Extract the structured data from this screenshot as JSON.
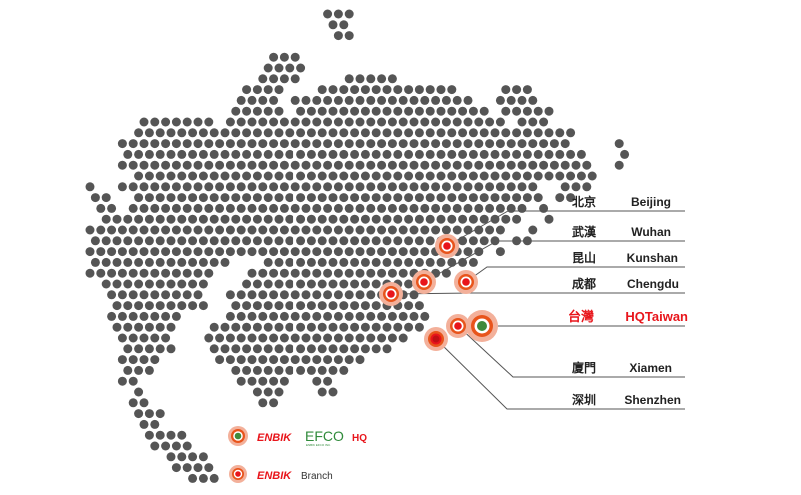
{
  "colors": {
    "dot": "#555555",
    "accent": "#e8151b",
    "marker_halo": "#f3b09a",
    "marker_ring": "#e8541b",
    "hq_center": "#3f8a3c",
    "efco_green": "#2f8a3a"
  },
  "locations": [
    {
      "id": "beijing",
      "zh": "北京",
      "en": "Beijing",
      "highlight": false
    },
    {
      "id": "wuhan",
      "zh": "武漢",
      "en": "Wuhan",
      "highlight": false
    },
    {
      "id": "kunshan",
      "zh": "昆山",
      "en": "Kunshan",
      "highlight": false
    },
    {
      "id": "chengdu",
      "zh": "成都",
      "en": "Chengdu",
      "highlight": false
    },
    {
      "id": "taiwan",
      "zh": "台灣",
      "en": "HQTaiwan",
      "highlight": true
    },
    {
      "id": "xiamen",
      "zh": "廈門",
      "en": "Xiamen",
      "highlight": false
    },
    {
      "id": "shenzhen",
      "zh": "深圳",
      "en": "Shenzhen",
      "highlight": false
    }
  ],
  "legend": {
    "hq": {
      "brand": "ENBIK",
      "partner": "EFCO",
      "partner_sub": "ENBIK EFCO INC.",
      "label": "HQ",
      "icon": "hq-marker-icon"
    },
    "branch": {
      "brand": "ENBIK",
      "label": "Branch",
      "icon": "branch-marker-icon"
    }
  }
}
